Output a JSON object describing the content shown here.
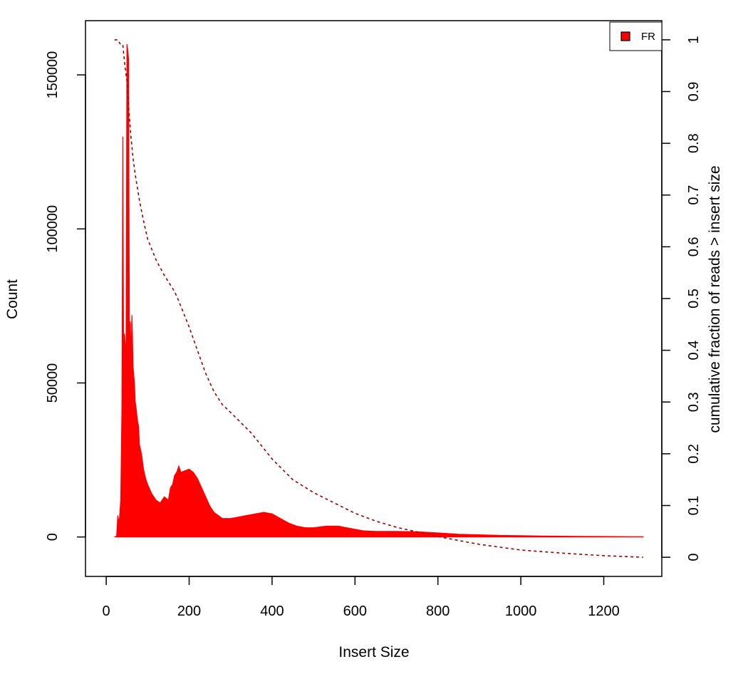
{
  "chart_data": {
    "type": "area",
    "xlabel": "Insert Size",
    "ylabel": "Count",
    "y2label": "cumulative fraction of reads > insert size",
    "xlim": [
      -50,
      1340
    ],
    "ylim": [
      -12800,
      167600
    ],
    "y2lim": [
      -0.037,
      1.037
    ],
    "xticks": [
      0,
      200,
      400,
      600,
      800,
      1000,
      1200
    ],
    "yticks": [
      0,
      50000,
      100000,
      150000
    ],
    "y2ticks": [
      0,
      0.1,
      0.2,
      0.3,
      0.4,
      0.5,
      0.6,
      0.7,
      0.8,
      0.9,
      1
    ],
    "legend": {
      "position": "top-right",
      "entries": [
        {
          "label": "FR",
          "color": "#ff0000"
        }
      ]
    },
    "series": [
      {
        "name": "FR",
        "kind": "histogram-fill",
        "axis": "left",
        "color": "#ff0000",
        "x": [
          20,
          25,
          28,
          30,
          32,
          35,
          38,
          40,
          42,
          44,
          46,
          48,
          50,
          52,
          54,
          56,
          58,
          60,
          62,
          65,
          68,
          70,
          72,
          75,
          78,
          80,
          85,
          90,
          95,
          100,
          110,
          120,
          130,
          140,
          150,
          155,
          160,
          165,
          170,
          175,
          180,
          190,
          200,
          210,
          220,
          230,
          240,
          250,
          260,
          270,
          280,
          290,
          300,
          320,
          340,
          360,
          380,
          400,
          420,
          440,
          460,
          480,
          500,
          530,
          560,
          580,
          600,
          620,
          650,
          700,
          750,
          800,
          850,
          900,
          950,
          1000,
          1050,
          1100,
          1150,
          1200,
          1250,
          1295
        ],
        "y": [
          0,
          300,
          7000,
          5000,
          6000,
          12000,
          43000,
          130000,
          60000,
          66000,
          62000,
          60000,
          160000,
          158000,
          155000,
          60000,
          70000,
          58000,
          72000,
          55000,
          50000,
          44000,
          42000,
          38000,
          36000,
          30000,
          27000,
          22000,
          19000,
          17000,
          14000,
          12000,
          11000,
          13000,
          12000,
          16000,
          17000,
          20000,
          21000,
          23000,
          21000,
          21500,
          22000,
          21000,
          19000,
          16000,
          13000,
          10000,
          8000,
          7000,
          6000,
          6000,
          6000,
          6500,
          7000,
          7500,
          8000,
          7500,
          6000,
          4500,
          3500,
          3000,
          3000,
          3500,
          3500,
          3000,
          2500,
          2000,
          1800,
          1800,
          1700,
          1300,
          900,
          700,
          500,
          400,
          300,
          250,
          200,
          150,
          100,
          50
        ]
      },
      {
        "name": "cumulative fraction",
        "kind": "dashed-line",
        "axis": "right",
        "color": "#990000",
        "x": [
          20,
          28,
          35,
          40,
          45,
          50,
          55,
          60,
          65,
          70,
          80,
          90,
          100,
          120,
          140,
          160,
          170,
          180,
          200,
          220,
          240,
          260,
          280,
          300,
          350,
          400,
          450,
          500,
          550,
          600,
          650,
          700,
          800,
          900,
          1000,
          1100,
          1200,
          1295
        ],
        "y": [
          1.0,
          1.0,
          0.99,
          0.99,
          0.95,
          0.92,
          0.86,
          0.81,
          0.77,
          0.74,
          0.69,
          0.65,
          0.615,
          0.575,
          0.545,
          0.52,
          0.505,
          0.485,
          0.445,
          0.4,
          0.355,
          0.32,
          0.295,
          0.28,
          0.24,
          0.19,
          0.15,
          0.125,
          0.105,
          0.085,
          0.07,
          0.058,
          0.04,
          0.025,
          0.014,
          0.008,
          0.003,
          0.0
        ]
      }
    ]
  }
}
